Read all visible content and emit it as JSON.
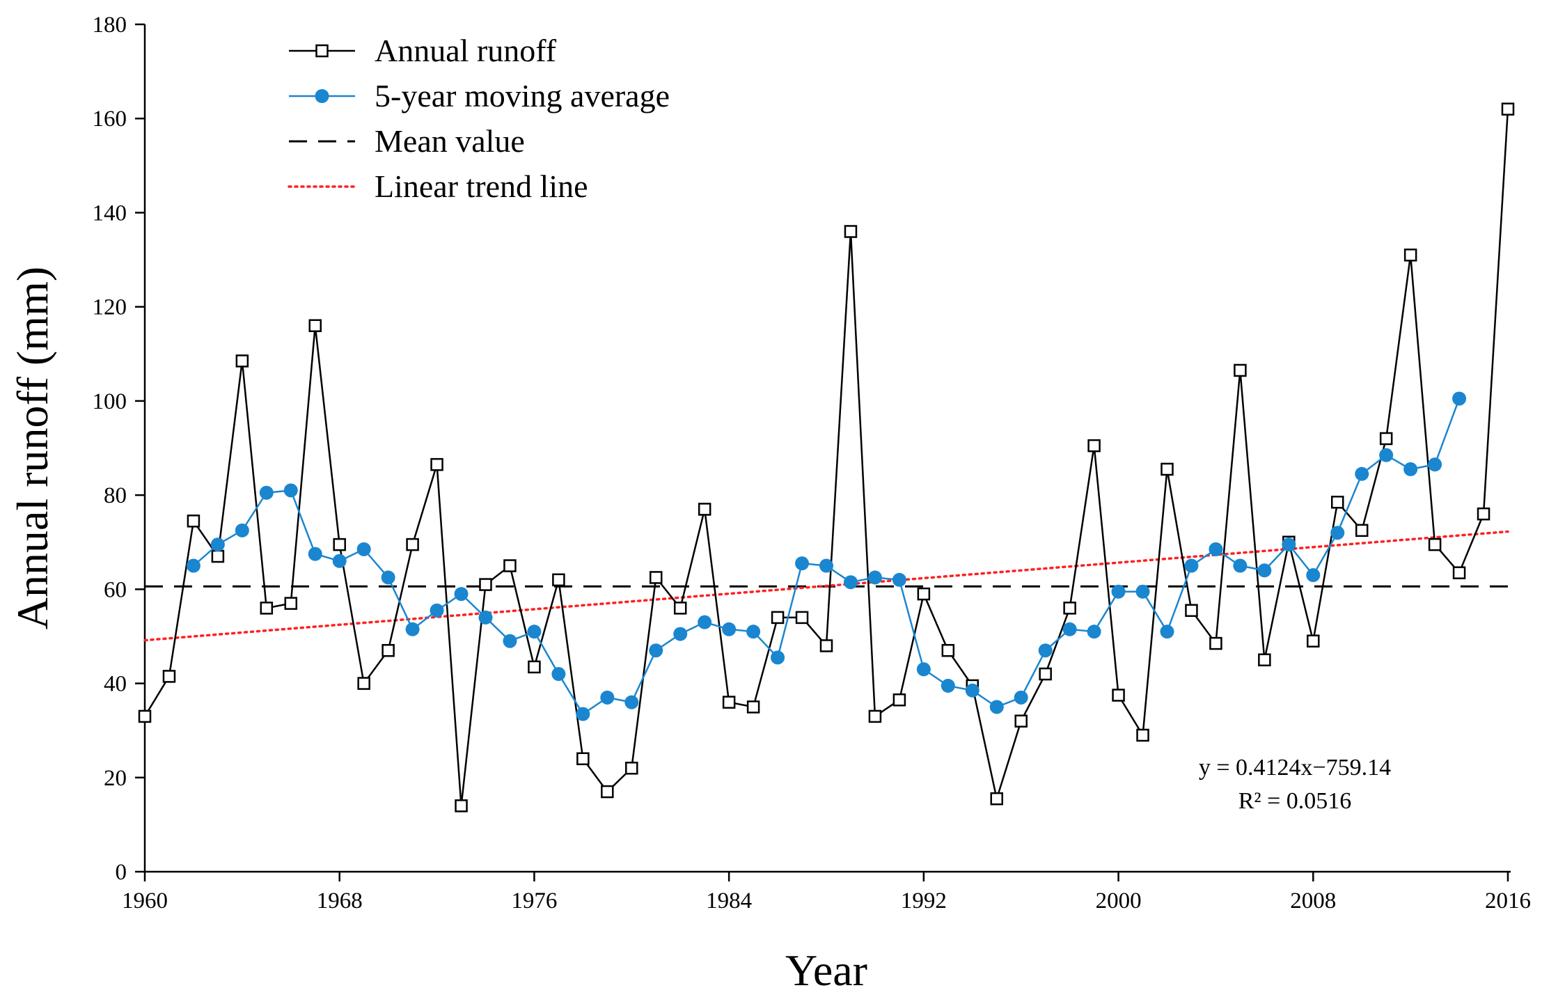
{
  "chart_data": {
    "type": "line",
    "xlabel": "Year",
    "ylabel": "Annual runoff (mm)",
    "xlim": [
      1960,
      2016
    ],
    "ylim": [
      0,
      180
    ],
    "xticks": [
      1960,
      1968,
      1976,
      1984,
      1992,
      2000,
      2008,
      2016
    ],
    "yticks": [
      0,
      20,
      40,
      60,
      80,
      100,
      120,
      140,
      160,
      180
    ],
    "xtick_labels": [
      "1960",
      "1968",
      "1976",
      "1984",
      "1992",
      "2000",
      "2008",
      "2016"
    ],
    "ytick_labels": [
      "0",
      "20",
      "40",
      "60",
      "80",
      "100",
      "120",
      "140",
      "160",
      "180"
    ],
    "grid": false,
    "legend_position": "top-left",
    "series": [
      {
        "name": "Annual runoff",
        "style": "line-square-open",
        "color": "#000000",
        "x": [
          1960,
          1961,
          1962,
          1963,
          1964,
          1965,
          1966,
          1967,
          1968,
          1969,
          1970,
          1971,
          1972,
          1973,
          1974,
          1975,
          1976,
          1977,
          1978,
          1979,
          1980,
          1981,
          1982,
          1983,
          1984,
          1985,
          1986,
          1987,
          1988,
          1989,
          1990,
          1991,
          1992,
          1993,
          1994,
          1995,
          1996,
          1997,
          1998,
          1999,
          2000,
          2001,
          2002,
          2003,
          2004,
          2005,
          2006,
          2007,
          2008,
          2009,
          2010,
          2011,
          2012,
          2013,
          2014,
          2015,
          2016
        ],
        "values": [
          33,
          41.5,
          74.5,
          67,
          108.5,
          56,
          57,
          116,
          69.5,
          40,
          47,
          69.5,
          86.5,
          14,
          61,
          65,
          43.5,
          62,
          24,
          17,
          22,
          62.5,
          56,
          77,
          36,
          35,
          54,
          54,
          48,
          136,
          33,
          36.5,
          59,
          47,
          39.5,
          15.5,
          32,
          42,
          56,
          90.5,
          37.5,
          29,
          85.5,
          55.5,
          48.5,
          106.5,
          45,
          70,
          49,
          78.5,
          72.5,
          92,
          131,
          69.5,
          63.5,
          76,
          162
        ]
      },
      {
        "name": "5-year moving average",
        "style": "line-circle-filled",
        "color": "#1a86d0",
        "x": [
          1962,
          1963,
          1964,
          1965,
          1966,
          1967,
          1968,
          1969,
          1970,
          1971,
          1972,
          1973,
          1974,
          1975,
          1976,
          1977,
          1978,
          1979,
          1980,
          1981,
          1982,
          1983,
          1984,
          1985,
          1986,
          1987,
          1988,
          1989,
          1990,
          1991,
          1992,
          1993,
          1994,
          1995,
          1996,
          1997,
          1998,
          1999,
          2000,
          2001,
          2002,
          2003,
          2004,
          2005,
          2006,
          2007,
          2008,
          2009,
          2010,
          2011,
          2012,
          2013,
          2014
        ],
        "values": [
          65,
          69.5,
          72.5,
          80.5,
          81,
          67.5,
          66,
          68.5,
          62.5,
          51.5,
          55.5,
          59,
          54,
          49,
          51,
          42,
          33.5,
          37,
          36,
          47,
          50.5,
          53,
          51.5,
          51,
          45.5,
          65.5,
          65,
          61.5,
          62.5,
          62,
          43,
          39.5,
          38.5,
          35,
          37,
          47,
          51.5,
          51,
          59.5,
          59.5,
          51,
          65,
          68.5,
          65,
          64,
          69.5,
          63,
          72,
          84.5,
          88.5,
          85.5,
          86.5,
          100.5
        ]
      },
      {
        "name": "Mean value",
        "style": "dashed",
        "color": "#000000",
        "value": 60.6
      },
      {
        "name": "Linear trend line",
        "style": "dotted",
        "color": "#ff2020",
        "slope": 0.4124,
        "intercept": -759.14
      }
    ],
    "annotations": {
      "equation": "y = 0.4124x−759.14",
      "r_squared": "R² = 0.0516"
    }
  }
}
